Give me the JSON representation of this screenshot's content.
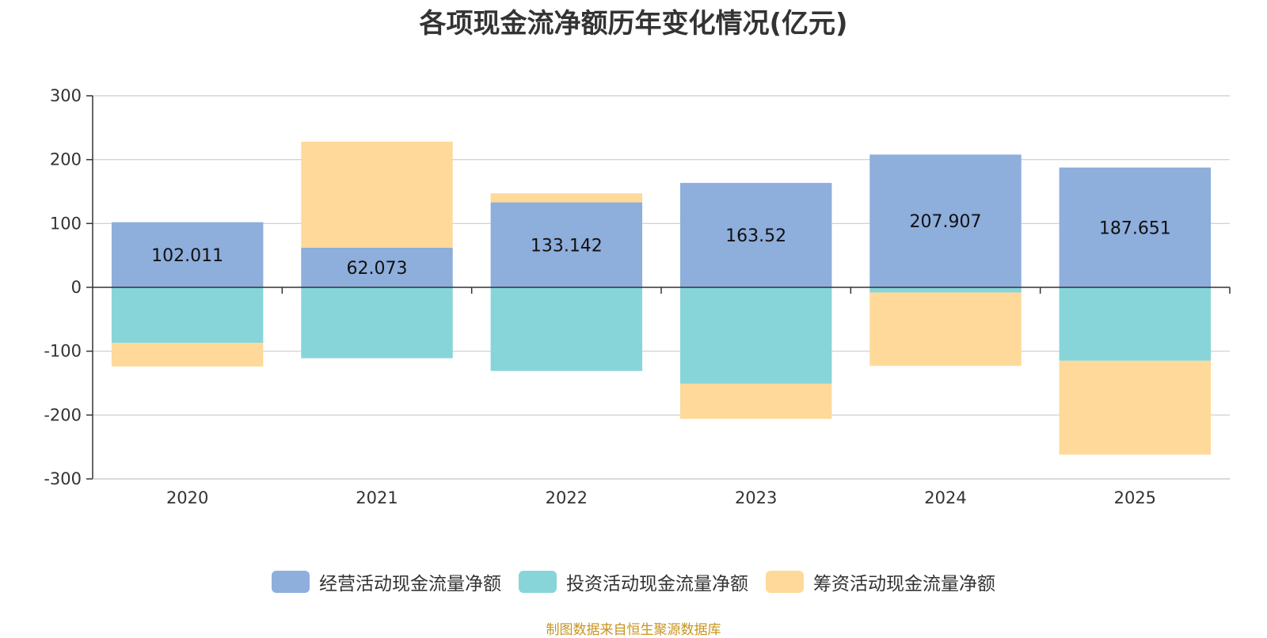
{
  "chart_data": {
    "type": "bar",
    "stacked": true,
    "title": "各项现金流净额历年变化情况(亿元)",
    "categories": [
      "2020",
      "2021",
      "2022",
      "2023",
      "2024",
      "2025"
    ],
    "ylim": [
      -300,
      300
    ],
    "yticks": [
      300,
      200,
      100,
      0,
      -100,
      -200,
      -300
    ],
    "grid": true,
    "legend_position": "bottom",
    "series": [
      {
        "name": "经营活动现金流量净额",
        "color": "#8eaedc",
        "values": [
          102.011,
          62.073,
          133.142,
          163.52,
          207.907,
          187.651
        ],
        "labels": [
          "102.011",
          "62.073",
          "133.142",
          "163.52",
          "207.907",
          "187.651"
        ]
      },
      {
        "name": "投资活动现金流量净额",
        "color": "#87d5d9",
        "values": [
          -87,
          -111,
          -131,
          -151,
          -8,
          -115
        ]
      },
      {
        "name": "筹资活动现金流量净额",
        "color": "#fed999",
        "values": [
          -37,
          166,
          14,
          -55,
          -115,
          -147
        ]
      }
    ]
  },
  "source_text": "制图数据来自恒生聚源数据库"
}
